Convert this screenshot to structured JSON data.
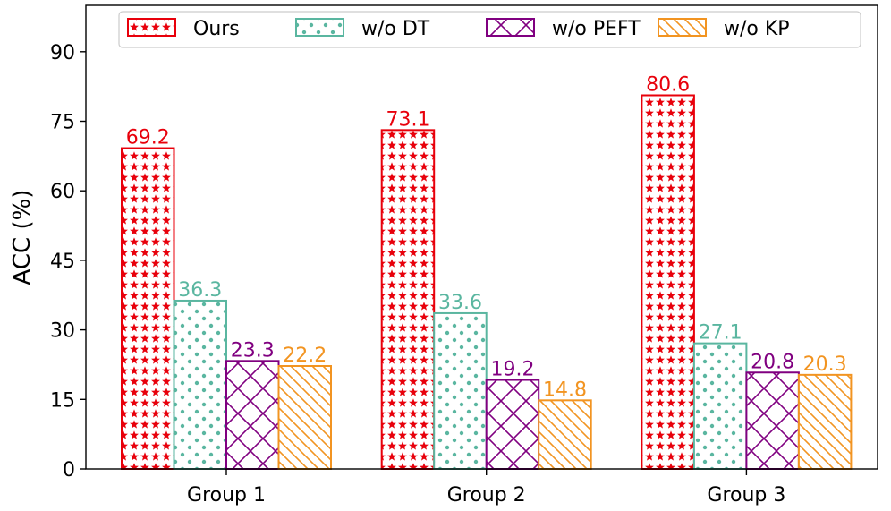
{
  "chart_data": {
    "type": "bar",
    "title": "",
    "xlabel": "",
    "ylabel": "ACC (%)",
    "ylim": [
      0,
      100
    ],
    "yticks": [
      0,
      15,
      30,
      45,
      60,
      75,
      90
    ],
    "categories": [
      "Group 1",
      "Group 2",
      "Group 3"
    ],
    "legend_position": "top",
    "series": [
      {
        "name": "Ours",
        "color": "#e8000b",
        "pattern": "stars",
        "values": [
          69.2,
          73.1,
          80.6
        ]
      },
      {
        "name": "w/o DT",
        "color": "#5ab6a0",
        "pattern": "dots",
        "values": [
          36.3,
          33.6,
          27.1
        ]
      },
      {
        "name": "w/o PEFT",
        "color": "#800080",
        "pattern": "crosshatch",
        "values": [
          23.3,
          19.2,
          20.8
        ]
      },
      {
        "name": "w/o KP",
        "color": "#f29421",
        "pattern": "diagonal",
        "values": [
          22.2,
          14.8,
          20.3
        ]
      }
    ],
    "data_labels": [
      [
        "69.2",
        "73.1",
        "80.6"
      ],
      [
        "36.3",
        "33.6",
        "27.1"
      ],
      [
        "23.3",
        "19.2",
        "20.8"
      ],
      [
        "22.2",
        "14.8",
        "20.3"
      ]
    ]
  }
}
